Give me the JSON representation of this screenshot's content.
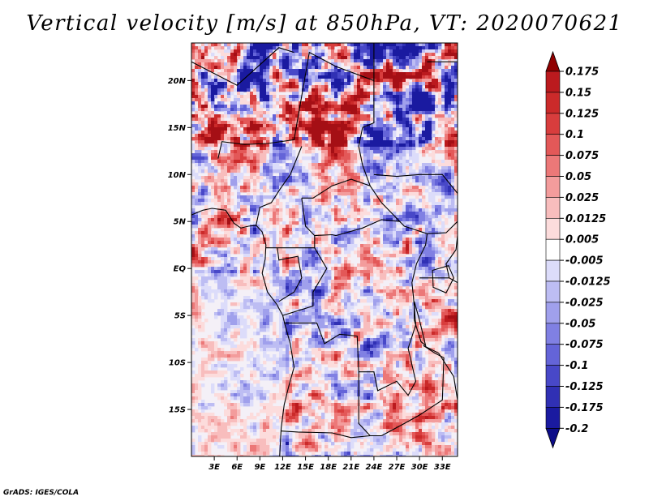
{
  "title": "Vertical velocity [m/s] at 850hPa, VT: 2020070621",
  "credit": "GrADS: IGES/COLA",
  "map": {
    "lon_range": [
      0,
      35
    ],
    "lat_range": [
      -20,
      24
    ],
    "lat_ticks": [
      {
        "value": 20,
        "label": "20N"
      },
      {
        "value": 15,
        "label": "15N"
      },
      {
        "value": 10,
        "label": "10N"
      },
      {
        "value": 5,
        "label": "5N"
      },
      {
        "value": 0,
        "label": "EQ"
      },
      {
        "value": -5,
        "label": "5S"
      },
      {
        "value": -10,
        "label": "10S"
      },
      {
        "value": -15,
        "label": "15S"
      }
    ],
    "lon_ticks": [
      {
        "value": 3,
        "label": "3E"
      },
      {
        "value": 6,
        "label": "6E"
      },
      {
        "value": 9,
        "label": "9E"
      },
      {
        "value": 12,
        "label": "12E"
      },
      {
        "value": 15,
        "label": "15E"
      },
      {
        "value": 18,
        "label": "18E"
      },
      {
        "value": 21,
        "label": "21E"
      },
      {
        "value": 24,
        "label": "24E"
      },
      {
        "value": 27,
        "label": "27E"
      },
      {
        "value": 30,
        "label": "30E"
      },
      {
        "value": 33,
        "label": "33E"
      }
    ]
  },
  "colorbar": {
    "levels": [
      {
        "label": "0.175",
        "color": "#a50f15"
      },
      {
        "label": "0.15",
        "color": "#bb1a1e"
      },
      {
        "label": "0.125",
        "color": "#cb2a2a"
      },
      {
        "label": "0.1",
        "color": "#d83d3d"
      },
      {
        "label": "0.075",
        "color": "#e35858"
      },
      {
        "label": "0.05",
        "color": "#ec7878"
      },
      {
        "label": "0.025",
        "color": "#f39c9c"
      },
      {
        "label": "0.0125",
        "color": "#f8bdbd"
      },
      {
        "label": "0.005",
        "color": "#fcdcdc"
      },
      {
        "label": "-0.005",
        "color": "#ffffff"
      },
      {
        "label": "-0.0125",
        "color": "#dcdcfa"
      },
      {
        "label": "-0.025",
        "color": "#bdbdf3"
      },
      {
        "label": "-0.05",
        "color": "#a0a0ec"
      },
      {
        "label": "-0.075",
        "color": "#8080e3"
      },
      {
        "label": "-0.1",
        "color": "#6464d8"
      },
      {
        "label": "-0.125",
        "color": "#4848c8"
      },
      {
        "label": "-0.175",
        "color": "#3030b4"
      },
      {
        "label": "-0.2",
        "color": "#1a1aa0"
      }
    ],
    "top_arrow_color": "#900000",
    "bottom_arrow_color": "#0c0c88"
  }
}
